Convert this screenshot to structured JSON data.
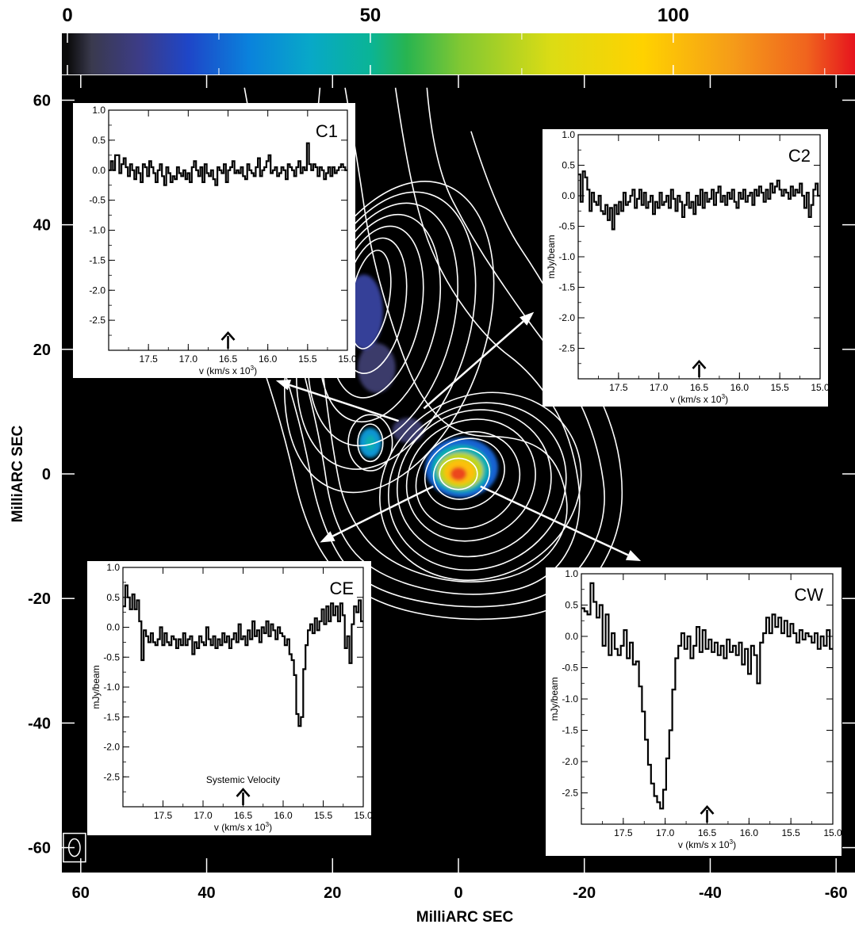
{
  "chart_data": {
    "type": "line",
    "colorbar": {
      "ticks": [
        "0",
        "50",
        "100"
      ],
      "tick_values": [
        0,
        50,
        100
      ],
      "range": [
        0,
        130
      ],
      "stops": [
        {
          "v": 0,
          "color": "#0a0a0a"
        },
        {
          "v": 4,
          "color": "#3a3a4e"
        },
        {
          "v": 12,
          "color": "#3c3c88"
        },
        {
          "v": 20,
          "color": "#1e46c8"
        },
        {
          "v": 30,
          "color": "#0a82dc"
        },
        {
          "v": 40,
          "color": "#08a8c8"
        },
        {
          "v": 50,
          "color": "#0ab496"
        },
        {
          "v": 56,
          "color": "#28b450"
        },
        {
          "v": 65,
          "color": "#82c832"
        },
        {
          "v": 80,
          "color": "#dcdc14"
        },
        {
          "v": 95,
          "color": "#ffd200"
        },
        {
          "v": 110,
          "color": "#f59b19"
        },
        {
          "v": 122,
          "color": "#f0641e"
        },
        {
          "v": 130,
          "color": "#e6141e"
        }
      ]
    },
    "map": {
      "xlabel": "MilliARC SEC",
      "ylabel": "MilliARC SEC",
      "xlim": [
        63,
        -63
      ],
      "ylim": [
        -64,
        64
      ],
      "xticks": [
        60,
        40,
        20,
        0,
        -20,
        -40,
        -60
      ],
      "yticks": [
        60,
        40,
        20,
        0,
        -20,
        -40,
        -60
      ],
      "background": "#000000",
      "contour_color": "#ffffff",
      "contours": [
        {
          "cx": 0,
          "cy": 0,
          "rx": 3,
          "ry": 2.5,
          "rot": 0
        },
        {
          "cx": -0.5,
          "cy": 0,
          "rx": 4.5,
          "ry": 4,
          "rot": -20
        },
        {
          "cx": -1,
          "cy": 0,
          "rx": 6.5,
          "ry": 5.5,
          "rot": -25
        },
        {
          "cx": -1.5,
          "cy": -1,
          "rx": 8.5,
          "ry": 7.5,
          "rot": -30
        },
        {
          "cx": -2,
          "cy": -1,
          "rx": 10.5,
          "ry": 9.5,
          "rot": -30
        },
        {
          "cx": -2.5,
          "cy": -1.5,
          "rx": 12.5,
          "ry": 11.5,
          "rot": -30
        },
        {
          "cx": -3,
          "cy": -2,
          "rx": 14.5,
          "ry": 13,
          "rot": -30
        },
        {
          "cx": -3.5,
          "cy": -2,
          "rx": 16.5,
          "ry": 14.5,
          "rot": -30
        },
        {
          "cx": 14,
          "cy": 28,
          "rx": 3,
          "ry": 8,
          "rot": 10
        },
        {
          "cx": 13.5,
          "cy": 27,
          "rx": 5,
          "ry": 11,
          "rot": 10
        },
        {
          "cx": 13,
          "cy": 26,
          "rx": 7,
          "ry": 14,
          "rot": 12
        },
        {
          "cx": 12.5,
          "cy": 25,
          "rx": 9,
          "ry": 17,
          "rot": 14
        },
        {
          "cx": 12,
          "cy": 24,
          "rx": 11,
          "ry": 20,
          "rot": 16
        },
        {
          "cx": 11.5,
          "cy": 23,
          "rx": 13,
          "ry": 23,
          "rot": 18
        },
        {
          "cx": 11,
          "cy": 22,
          "rx": 15,
          "ry": 26,
          "rot": 20
        },
        {
          "cx": 14,
          "cy": 5,
          "rx": 2,
          "ry": 3,
          "rot": 0
        },
        {
          "cx": 14,
          "cy": 5,
          "rx": 3.5,
          "ry": 4.5,
          "rot": 0
        }
      ],
      "contour_paths": [
        [
          [
            18,
            62
          ],
          [
            16,
            50
          ],
          [
            14,
            36
          ],
          [
            10,
            22
          ],
          [
            6,
            12
          ],
          [
            0,
            6
          ],
          [
            -10,
            6
          ],
          [
            -16,
            2
          ],
          [
            -18,
            -8
          ],
          [
            -12,
            -16
          ],
          [
            0,
            -18
          ],
          [
            12,
            -14
          ],
          [
            18,
            -6
          ],
          [
            20,
            4
          ],
          [
            22,
            20
          ],
          [
            24,
            40
          ],
          [
            22,
            62
          ]
        ],
        [
          [
            10,
            62
          ],
          [
            8,
            48
          ],
          [
            4,
            34
          ],
          [
            -4,
            22
          ],
          [
            -12,
            16
          ],
          [
            -18,
            6
          ],
          [
            -20,
            -8
          ],
          [
            -14,
            -18
          ],
          [
            0,
            -20
          ],
          [
            14,
            -16
          ],
          [
            20,
            -8
          ],
          [
            22,
            6
          ],
          [
            26,
            22
          ],
          [
            30,
            40
          ],
          [
            34,
            62
          ]
        ],
        [
          [
            5,
            62
          ],
          [
            4,
            50
          ],
          [
            -2,
            38
          ],
          [
            -10,
            26
          ],
          [
            -16,
            18
          ],
          [
            -22,
            6
          ],
          [
            -24,
            -8
          ],
          [
            -16,
            -20
          ],
          [
            0,
            -22
          ],
          [
            16,
            -18
          ],
          [
            22,
            -8
          ],
          [
            25,
            8
          ],
          [
            30,
            24
          ],
          [
            36,
            40
          ],
          [
            40,
            56
          ]
        ],
        [
          [
            -2,
            55
          ],
          [
            -6,
            42
          ],
          [
            -14,
            30
          ],
          [
            -20,
            18
          ],
          [
            -26,
            4
          ],
          [
            -26,
            -10
          ],
          [
            -18,
            -22
          ],
          [
            0,
            -24
          ],
          [
            16,
            -20
          ],
          [
            24,
            -10
          ],
          [
            28,
            8
          ],
          [
            34,
            26
          ],
          [
            40,
            42
          ],
          [
            46,
            58
          ]
        ]
      ],
      "emission": [
        {
          "cx": 0,
          "cy": 0,
          "rx": 1.3,
          "ry": 1.1,
          "level": 125
        },
        {
          "cx": -0.2,
          "cy": 0.3,
          "rx": 2.5,
          "ry": 2,
          "level": 100
        },
        {
          "cx": -0.3,
          "cy": 0.5,
          "rx": 3.6,
          "ry": 2.9,
          "level": 75
        },
        {
          "cx": -0.4,
          "cy": 0.8,
          "rx": 4.6,
          "ry": 3.8,
          "level": 45
        },
        {
          "cx": -0.5,
          "cy": 1,
          "rx": 5.8,
          "ry": 4.8,
          "level": 25
        },
        {
          "cx": 14,
          "cy": 5,
          "rx": 1.8,
          "ry": 2.4,
          "level": 35
        },
        {
          "cx": 14,
          "cy": 5,
          "rx": 0.8,
          "ry": 1.2,
          "level": 45
        },
        {
          "cx": 15,
          "cy": 26,
          "rx": 3,
          "ry": 6,
          "level": 14
        },
        {
          "cx": 13,
          "cy": 17,
          "rx": 3,
          "ry": 4,
          "level": 8
        },
        {
          "cx": 8,
          "cy": 7,
          "rx": 2.5,
          "ry": 2,
          "level": 8
        }
      ],
      "beam": {
        "x": 61,
        "y": -60,
        "rx": 0.9,
        "ry": 1.4
      },
      "arrows": [
        {
          "from": [
            9.5,
            8.5
          ],
          "to": [
            29,
            15
          ]
        },
        {
          "from": [
            5.5,
            10.5
          ],
          "to": [
            -12,
            26
          ]
        },
        {
          "from": [
            4,
            -2
          ],
          "to": [
            22,
            -11
          ]
        },
        {
          "from": [
            -3.5,
            -2
          ],
          "to": [
            -29,
            -14
          ]
        }
      ]
    },
    "insets": [
      {
        "label": "C1",
        "xlabel": "v (km/s x 10",
        "xlabel_sup": "3",
        "ylabel": "",
        "xlim": [
          18.0,
          15.0
        ],
        "ylim": [
          -3.0,
          1.0
        ],
        "xticks": [
          "17.5",
          "17.0",
          "16.5",
          "16.0",
          "15.5",
          "15.0"
        ],
        "yticks": [
          "1.0",
          "0.5",
          "0.0",
          "-0.5",
          "-1.0",
          "-1.5",
          "-2.0",
          "-2.5"
        ],
        "arrow_v": 16.5,
        "note": "",
        "spectrum": [
          0.0,
          0.15,
          0.0,
          0.25,
          0.25,
          -0.05,
          0.1,
          0.2,
          0.05,
          -0.1,
          0.1,
          0.0,
          -0.15,
          0.05,
          -0.05,
          -0.2,
          0.1,
          0.05,
          -0.1,
          0.15,
          0.05,
          -0.05,
          -0.2,
          0.0,
          0.1,
          -0.1,
          -0.25,
          0.05,
          -0.05,
          -0.2,
          -0.1,
          -0.15,
          0.05,
          -0.05,
          -0.1,
          0.0,
          -0.15,
          -0.05,
          -0.2,
          0.05,
          0.15,
          0.0,
          -0.1,
          0.05,
          -0.2,
          0.1,
          -0.05,
          -0.1,
          0.0,
          -0.15,
          -0.25,
          0.05,
          0.0,
          -0.05,
          0.1,
          -0.2,
          0.0,
          0.05,
          0.15,
          -0.05,
          0.0,
          -0.05,
          0.05,
          -0.1,
          -0.15,
          0.1,
          0.0,
          -0.05,
          -0.1,
          0.05,
          0.2,
          -0.1,
          0.0,
          0.05,
          0.15,
          0.25,
          -0.05,
          0.0,
          0.05,
          -0.1,
          -0.05,
          0.05,
          0.0,
          -0.15,
          0.1,
          0.05,
          0.0,
          -0.1,
          0.05,
          0.15,
          -0.05,
          0.05,
          0.0,
          0.45,
          0.1,
          0.0,
          0.1,
          0.05,
          -0.1,
          0.05,
          0.0,
          -0.15,
          -0.05,
          0.05,
          -0.1,
          0.05,
          -0.05,
          0.0,
          0.05,
          0.1,
          0.05,
          0.0
        ]
      },
      {
        "label": "C2",
        "xlabel": "v (km/s x 10",
        "xlabel_sup": "3",
        "ylabel": "mJy/beam",
        "xlim": [
          18.0,
          15.0
        ],
        "ylim": [
          -3.0,
          1.0
        ],
        "xticks": [
          "17.5",
          "17.0",
          "16.5",
          "16.0",
          "15.5",
          "15.0"
        ],
        "yticks": [
          "1.0",
          "0.5",
          "0.0",
          "-0.5",
          "-1.0",
          "-1.5",
          "-2.0",
          "-2.5"
        ],
        "arrow_v": 16.5,
        "note": "",
        "spectrum": [
          0.35,
          -0.1,
          0.4,
          0.3,
          0.1,
          -0.25,
          0.05,
          -0.1,
          -0.15,
          0.0,
          -0.25,
          -0.3,
          -0.15,
          -0.4,
          -0.2,
          -0.55,
          -0.15,
          -0.3,
          -0.1,
          -0.25,
          0.05,
          -0.15,
          -0.1,
          0.0,
          0.1,
          -0.2,
          -0.05,
          0.1,
          -0.15,
          0.05,
          -0.2,
          -0.1,
          0.0,
          -0.3,
          -0.1,
          -0.2,
          0.05,
          -0.15,
          -0.1,
          0.0,
          -0.2,
          0.1,
          -0.05,
          -0.25,
          0.0,
          -0.1,
          -0.35,
          -0.15,
          0.05,
          -0.2,
          -0.1,
          -0.3,
          0.0,
          -0.15,
          0.1,
          -0.2,
          0.05,
          -0.1,
          -0.05,
          0.1,
          -0.15,
          0.05,
          0.15,
          -0.1,
          0.0,
          -0.15,
          0.05,
          -0.05,
          0.1,
          -0.1,
          -0.2,
          0.05,
          -0.05,
          0.1,
          -0.1,
          0.0,
          0.05,
          -0.15,
          0.1,
          0.0,
          0.15,
          0.05,
          -0.1,
          0.1,
          -0.05,
          0.2,
          0.05,
          0.15,
          0.25,
          0.1,
          0.0,
          0.1,
          0.05,
          -0.05,
          0.15,
          0.0,
          0.1,
          0.05,
          0.2,
          0.0,
          -0.2,
          0.05,
          -0.35,
          -0.15,
          0.1,
          0.2,
          0.0
        ]
      },
      {
        "label": "CE",
        "xlabel": "v (km/s x 10",
        "xlabel_sup": "3",
        "ylabel": "mJy/beam",
        "xlim": [
          18.0,
          15.0
        ],
        "ylim": [
          -3.0,
          1.0
        ],
        "xticks": [
          "17.5",
          "17.0",
          "16.5",
          "16.0",
          "15.5",
          "15.0"
        ],
        "yticks": [
          "1.0",
          "0.5",
          "0.0",
          "-0.5",
          "-1.0",
          "-1.5",
          "-2.0",
          "-2.5"
        ],
        "arrow_v": 16.5,
        "note": "Systemic Velocity",
        "spectrum": [
          0.35,
          0.7,
          0.5,
          0.3,
          0.55,
          0.3,
          0.45,
          0.1,
          -0.55,
          -0.05,
          -0.15,
          -0.25,
          -0.1,
          -0.25,
          -0.3,
          -0.2,
          0.0,
          -0.3,
          -0.1,
          -0.25,
          -0.3,
          -0.15,
          -0.2,
          -0.35,
          -0.2,
          -0.3,
          -0.1,
          -0.3,
          -0.2,
          -0.15,
          -0.45,
          -0.25,
          -0.35,
          -0.15,
          -0.25,
          -0.3,
          0.0,
          -0.2,
          -0.3,
          -0.15,
          -0.35,
          -0.2,
          -0.3,
          -0.1,
          -0.25,
          -0.15,
          -0.35,
          -0.2,
          -0.1,
          -0.25,
          0.05,
          -0.2,
          -0.15,
          -0.3,
          -0.05,
          -0.2,
          0.1,
          -0.15,
          -0.05,
          -0.25,
          0.0,
          -0.1,
          0.1,
          -0.15,
          0.05,
          -0.05,
          -0.2,
          0.0,
          -0.1,
          -0.15,
          -0.3,
          -0.2,
          -0.45,
          -0.55,
          -0.8,
          -1.45,
          -1.65,
          -1.5,
          -0.7,
          -0.3,
          -0.05,
          0.05,
          -0.1,
          0.15,
          -0.05,
          0.1,
          0.3,
          0.05,
          0.35,
          0.1,
          0.4,
          0.2,
          0.35,
          0.1,
          0.4,
          0.2,
          -0.35,
          -0.15,
          -0.6,
          0.05,
          0.35,
          0.25,
          0.45,
          0.1
        ]
      },
      {
        "label": "CW",
        "xlabel": "v (km/s x 10",
        "xlabel_sup": "3",
        "ylabel": "mJy/beam",
        "xlim": [
          18.0,
          15.0
        ],
        "ylim": [
          -3.0,
          1.0
        ],
        "xticks": [
          "17.5",
          "17.0",
          "16.5",
          "16.0",
          "15.5",
          "15.0"
        ],
        "yticks": [
          "1.0",
          "0.5",
          "0.0",
          "-0.5",
          "-1.0",
          "-1.5",
          "-2.0",
          "-2.5"
        ],
        "arrow_v": 16.5,
        "note": "",
        "spectrum": [
          0.45,
          0.4,
          0.35,
          0.85,
          0.55,
          0.3,
          0.5,
          -0.15,
          0.35,
          -0.3,
          0.05,
          -0.2,
          -0.3,
          -0.15,
          0.1,
          -0.35,
          -0.1,
          -0.45,
          -0.4,
          -0.8,
          -1.2,
          -1.65,
          -2.05,
          -2.35,
          -2.55,
          -2.65,
          -2.75,
          -2.45,
          -1.95,
          -1.5,
          -0.85,
          -0.35,
          -0.15,
          0.05,
          -0.2,
          0.0,
          -0.35,
          -0.15,
          0.15,
          -0.25,
          0.1,
          -0.2,
          -0.05,
          -0.25,
          -0.1,
          -0.3,
          -0.15,
          -0.35,
          -0.05,
          -0.25,
          -0.15,
          -0.3,
          -0.1,
          -0.45,
          -0.2,
          -0.6,
          -0.15,
          -0.3,
          -0.75,
          -0.1,
          0.05,
          0.3,
          0.05,
          0.35,
          0.15,
          0.3,
          0.05,
          0.25,
          0.0,
          0.2,
          0.05,
          -0.1,
          0.1,
          -0.05,
          0.05,
          0.0,
          -0.1,
          0.05,
          -0.2,
          0.0,
          -0.15,
          0.1,
          -0.2
        ]
      }
    ]
  }
}
